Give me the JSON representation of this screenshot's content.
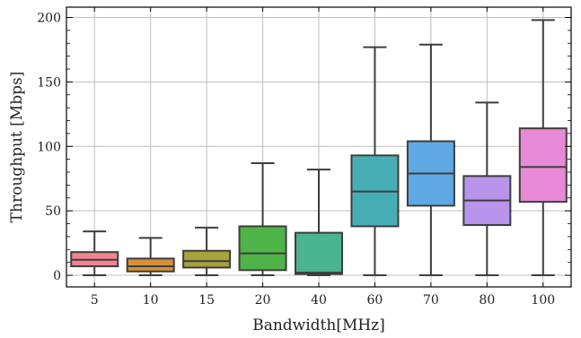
{
  "chart_data": {
    "type": "box",
    "xlabel": "Bandwidth[MHz]",
    "ylabel": "Throughput  [Mbps]",
    "ylim": [
      -9,
      208
    ],
    "yticks": [
      0,
      50,
      100,
      150,
      200
    ],
    "grid": true,
    "categories": [
      "5",
      "10",
      "15",
      "20",
      "40",
      "60",
      "70",
      "80",
      "100"
    ],
    "boxes": [
      {
        "category": "5",
        "min": 0,
        "q1": 7,
        "median": 12,
        "q3": 18,
        "max": 34,
        "color": "#f0848f"
      },
      {
        "category": "10",
        "min": 0,
        "q1": 3,
        "median": 7,
        "q3": 13,
        "max": 29,
        "color": "#d4913a"
      },
      {
        "category": "15",
        "min": 0,
        "q1": 6,
        "median": 11,
        "q3": 19,
        "max": 37,
        "color": "#a5a33a"
      },
      {
        "category": "20",
        "min": 0,
        "q1": 4,
        "median": 17,
        "q3": 38,
        "max": 87,
        "color": "#4fb447"
      },
      {
        "category": "40",
        "min": 0,
        "q1": 1,
        "median": 2,
        "q3": 33,
        "max": 82,
        "color": "#4ab38f"
      },
      {
        "category": "60",
        "min": 0,
        "q1": 38,
        "median": 65,
        "q3": 93,
        "max": 177,
        "color": "#48aeb5"
      },
      {
        "category": "70",
        "min": 0,
        "q1": 54,
        "median": 79,
        "q3": 104,
        "max": 179,
        "color": "#5ea9e3"
      },
      {
        "category": "80",
        "min": 0,
        "q1": 39,
        "median": 58,
        "q3": 77,
        "max": 134,
        "color": "#b894ea"
      },
      {
        "category": "100",
        "min": 0,
        "q1": 57,
        "median": 84,
        "q3": 114,
        "max": 198,
        "color": "#e88ad6"
      }
    ]
  }
}
